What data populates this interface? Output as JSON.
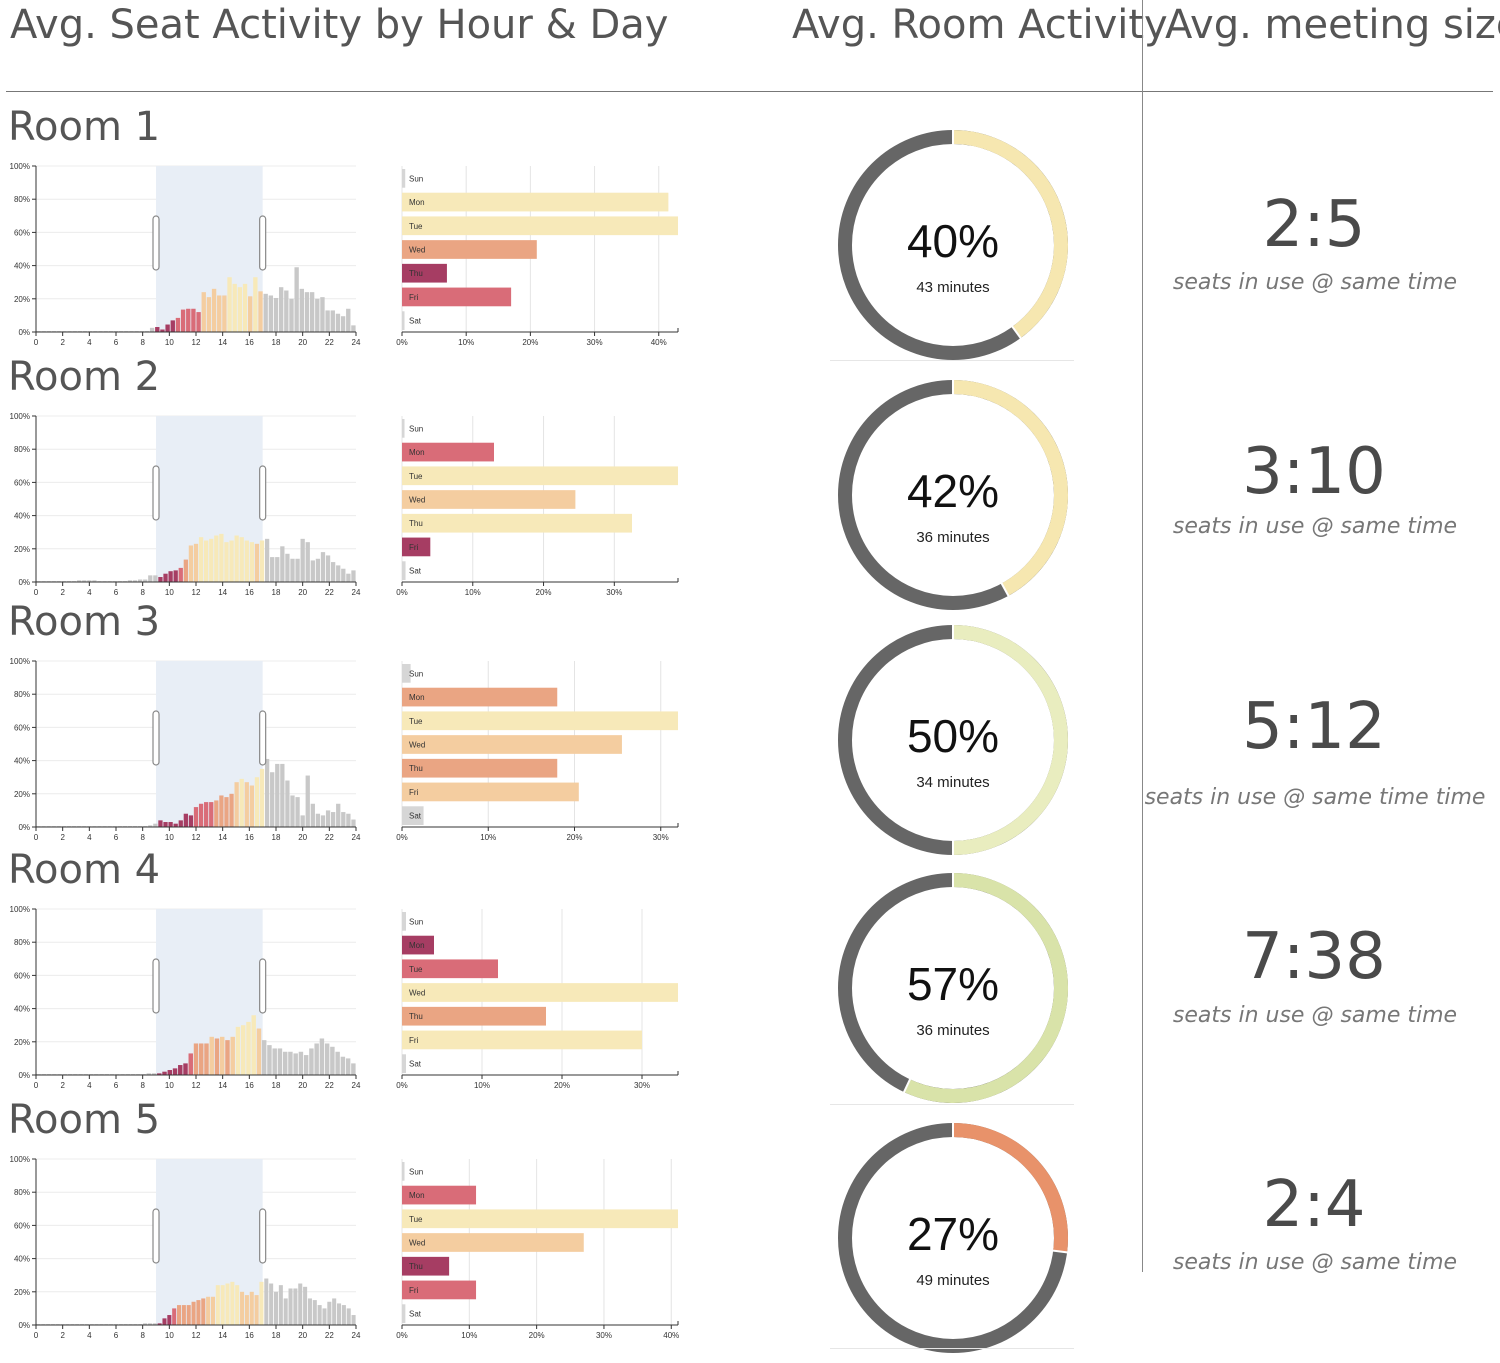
{
  "headers": {
    "seat_activity": "Avg. Seat Activity by Hour & Day",
    "room_activity": "Avg. Room Activity",
    "meeting_size": "Avg. meeting size"
  },
  "colors": {
    "off_hours": "#c8c8c8",
    "work_hours_band": "#e8eef6",
    "donut_track": "#666666",
    "palette": [
      "#f7e9b9",
      "#f4cda0",
      "#eaa583",
      "#d96c78",
      "#a63d63"
    ]
  },
  "rooms": [
    {
      "name": "Room 1",
      "room_activity": {
        "percent": 40,
        "label": "40%",
        "minutes_label": "43 minutes",
        "color": "#f6e7b0"
      },
      "meeting_size": {
        "value": "2:5",
        "caption": "seats in use @ same time"
      },
      "hourly_chart": {
        "type": "bar",
        "x_ticks": [
          "0",
          "2",
          "4",
          "6",
          "8",
          "10",
          "12",
          "14",
          "16",
          "18",
          "20",
          "22",
          "24"
        ],
        "y_ticks": [
          "0%",
          "20%",
          "40%",
          "60%",
          "80%",
          "100%"
        ],
        "ylim": [
          0,
          100
        ],
        "work_hours": [
          9,
          17
        ],
        "values": [
          0.5,
          0.5,
          0.5,
          0.5,
          0.5,
          0.5,
          0.5,
          0.5,
          0.5,
          0.5,
          0.5,
          0.5,
          0.5,
          0.5,
          0.5,
          0.5,
          0.5,
          0.5,
          0.5,
          0.5,
          0.5,
          0.5,
          2.5,
          3,
          1.5,
          4.5,
          7,
          8.5,
          13.5,
          14,
          14,
          12,
          24,
          21,
          26,
          22,
          22,
          33,
          29,
          27,
          29,
          21.5,
          33,
          24.5,
          23,
          22,
          20.5,
          27,
          25,
          20,
          39,
          26,
          24,
          24,
          20,
          21,
          13,
          13,
          11,
          9.5,
          14,
          4
        ]
      },
      "daily_chart": {
        "type": "bar",
        "categories": [
          "Sun",
          "Mon",
          "Tue",
          "Wed",
          "Thu",
          "Fri",
          "Sat"
        ],
        "values": [
          0.5,
          41.5,
          43,
          21,
          7,
          17,
          0
        ],
        "x_ticks": [
          "0%",
          "10%",
          "20%",
          "30%",
          "40%"
        ],
        "xlim": [
          0,
          43
        ]
      }
    },
    {
      "name": "Room 2",
      "room_activity": {
        "percent": 42,
        "label": "42%",
        "minutes_label": "36 minutes",
        "color": "#f6e7b0"
      },
      "meeting_size": {
        "value": "3:10",
        "caption": "seats in use @ same time"
      },
      "hourly_chart": {
        "type": "bar",
        "x_ticks": [
          "0",
          "2",
          "4",
          "6",
          "8",
          "10",
          "12",
          "14",
          "16",
          "18",
          "20",
          "22",
          "24"
        ],
        "y_ticks": [
          "0%",
          "20%",
          "40%",
          "60%",
          "80%",
          "100%"
        ],
        "ylim": [
          0,
          100
        ],
        "work_hours": [
          9,
          17
        ],
        "values": [
          0.5,
          0.5,
          0.5,
          0.5,
          0.5,
          0.5,
          0.5,
          0.5,
          1,
          1,
          1,
          1,
          0.5,
          0.5,
          0.5,
          0.5,
          0.5,
          0.5,
          1,
          1,
          1.5,
          1.5,
          4,
          4,
          3,
          5,
          6.5,
          7,
          8.5,
          13.5,
          22,
          23,
          27,
          25,
          26,
          28,
          29,
          24,
          25,
          28,
          27,
          25,
          24,
          23,
          25,
          26,
          15,
          15,
          21.5,
          17,
          14,
          14,
          26,
          24,
          13,
          14,
          18,
          16,
          12,
          10,
          8,
          5,
          7
        ]
      },
      "daily_chart": {
        "type": "bar",
        "categories": [
          "Sun",
          "Mon",
          "Tue",
          "Wed",
          "Thu",
          "Fri",
          "Sat"
        ],
        "values": [
          0,
          13,
          39,
          24.5,
          32.5,
          4,
          0.5
        ],
        "x_ticks": [
          "0%",
          "10%",
          "20%",
          "30%"
        ],
        "xlim": [
          0,
          39
        ]
      }
    },
    {
      "name": "Room 3",
      "room_activity": {
        "percent": 50,
        "label": "50%",
        "minutes_label": "34 minutes",
        "color": "#e9edbf"
      },
      "meeting_size": {
        "value": "5:12",
        "caption": "seats in use @ same time time"
      },
      "hourly_chart": {
        "type": "bar",
        "x_ticks": [
          "0",
          "2",
          "4",
          "6",
          "8",
          "10",
          "12",
          "14",
          "16",
          "18",
          "20",
          "22",
          "24"
        ],
        "y_ticks": [
          "0%",
          "20%",
          "40%",
          "60%",
          "80%",
          "100%"
        ],
        "ylim": [
          0,
          100
        ],
        "work_hours": [
          9,
          17
        ],
        "values": [
          0.5,
          0.5,
          0.5,
          0.5,
          0.5,
          0.5,
          0.5,
          0.5,
          0.5,
          0.5,
          0.5,
          0.5,
          0.5,
          0.5,
          0.5,
          0.5,
          0.5,
          0.5,
          0.5,
          0.5,
          0.5,
          0.5,
          1,
          2,
          4,
          3,
          3,
          2,
          4,
          8,
          7,
          12,
          14,
          15,
          15,
          16,
          19,
          18,
          20,
          27,
          29,
          27,
          25,
          30,
          35,
          41,
          33,
          38,
          38,
          28,
          19,
          18,
          7,
          31,
          14,
          8,
          7,
          10,
          9,
          14,
          9,
          8,
          4.5
        ]
      },
      "daily_chart": {
        "type": "bar",
        "categories": [
          "Sun",
          "Mon",
          "Tue",
          "Wed",
          "Thu",
          "Fri",
          "Sat"
        ],
        "values": [
          1,
          18,
          32,
          25.5,
          18,
          20.5,
          2.5
        ],
        "x_ticks": [
          "0%",
          "10%",
          "20%",
          "30%"
        ],
        "xlim": [
          0,
          32
        ]
      }
    },
    {
      "name": "Room 4",
      "room_activity": {
        "percent": 57,
        "label": "57%",
        "minutes_label": "36 minutes",
        "color": "#d9e3a9"
      },
      "meeting_size": {
        "value": "7:38",
        "caption": "seats in use @ same time"
      },
      "hourly_chart": {
        "type": "bar",
        "x_ticks": [
          "0",
          "2",
          "4",
          "6",
          "8",
          "10",
          "12",
          "14",
          "16",
          "18",
          "20",
          "22",
          "24"
        ],
        "y_ticks": [
          "0%",
          "20%",
          "40%",
          "60%",
          "80%",
          "100%"
        ],
        "ylim": [
          0,
          100
        ],
        "work_hours": [
          9,
          17
        ],
        "values": [
          0.5,
          0.5,
          0.5,
          0.5,
          0.5,
          0.5,
          0.5,
          0.5,
          0.5,
          0.5,
          0.5,
          0.5,
          0.5,
          0.5,
          0.5,
          0.5,
          0.5,
          0.5,
          0.5,
          0.5,
          0.5,
          1,
          1,
          1,
          2,
          3,
          4,
          6,
          7,
          13,
          19,
          19,
          19,
          23,
          22,
          23,
          21,
          23,
          29,
          30,
          32,
          36,
          28,
          21,
          18,
          16,
          16,
          14,
          14,
          13,
          14,
          12,
          16,
          19,
          22,
          19,
          17,
          14,
          11,
          10,
          7
        ]
      },
      "daily_chart": {
        "type": "bar",
        "categories": [
          "Sun",
          "Mon",
          "Tue",
          "Wed",
          "Thu",
          "Fri",
          "Sat"
        ],
        "values": [
          0.5,
          4,
          12,
          34.5,
          18,
          30,
          0.5
        ],
        "x_ticks": [
          "0%",
          "10%",
          "20%",
          "30%"
        ],
        "xlim": [
          0,
          34.5
        ]
      }
    },
    {
      "name": "Room 5",
      "room_activity": {
        "percent": 27,
        "label": "27%",
        "minutes_label": "49 minutes",
        "color": "#e8926a"
      },
      "meeting_size": {
        "value": "2:4",
        "caption": "seats in use @ same time"
      },
      "hourly_chart": {
        "type": "bar",
        "x_ticks": [
          "0",
          "2",
          "4",
          "6",
          "8",
          "10",
          "12",
          "14",
          "16",
          "18",
          "20",
          "22",
          "24"
        ],
        "y_ticks": [
          "0%",
          "20%",
          "40%",
          "60%",
          "80%",
          "100%"
        ],
        "ylim": [
          0,
          100
        ],
        "work_hours": [
          9,
          17
        ],
        "values": [
          0.5,
          0.5,
          0.5,
          0.5,
          0.5,
          0.5,
          0.5,
          0.5,
          0.5,
          0.5,
          0.5,
          0.5,
          0.5,
          0.5,
          0.5,
          0.5,
          0.5,
          0.5,
          0.5,
          0.5,
          0.5,
          0.5,
          1,
          1,
          1,
          1,
          4,
          6,
          10,
          12,
          12,
          12,
          14,
          15,
          16,
          17,
          17,
          24,
          24,
          25,
          26,
          24,
          20,
          18,
          20,
          18,
          26,
          28,
          25,
          20,
          24,
          16,
          22,
          22,
          25,
          23,
          16,
          15,
          12,
          10,
          14,
          16,
          13,
          12,
          10,
          6
        ]
      },
      "daily_chart": {
        "type": "bar",
        "categories": [
          "Sun",
          "Mon",
          "Tue",
          "Wed",
          "Thu",
          "Fri",
          "Sat"
        ],
        "values": [
          0,
          11,
          41,
          27,
          7,
          11,
          0.5
        ],
        "x_ticks": [
          "0%",
          "10%",
          "20%",
          "30%",
          "40%"
        ],
        "xlim": [
          0,
          41
        ]
      }
    }
  ]
}
